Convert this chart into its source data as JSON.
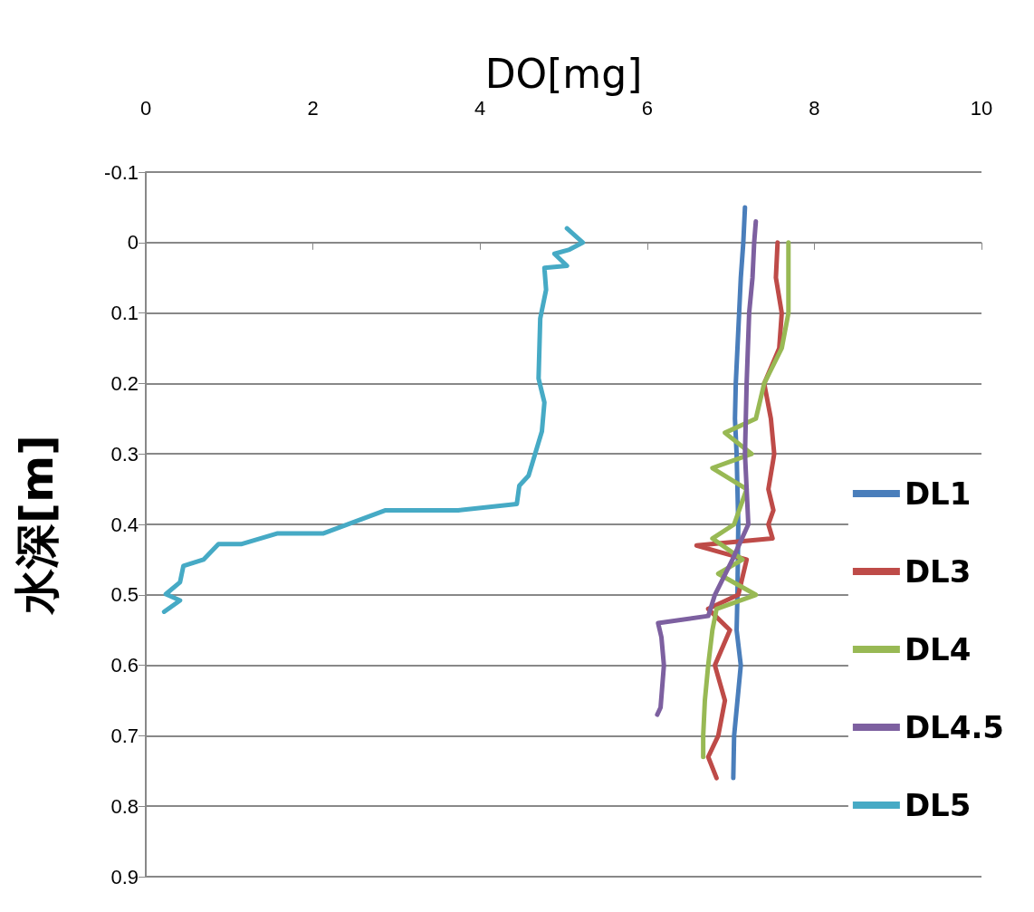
{
  "chart_data": {
    "type": "line",
    "xlabel": "DO[mg]",
    "ylabel": "水深[m]",
    "xlim": [
      0,
      10
    ],
    "xticks": [
      0,
      2,
      4,
      6,
      8,
      10
    ],
    "ylim": [
      0.9,
      -0.1
    ],
    "yticks": [
      -0.1,
      0,
      0.1,
      0.2,
      0.3,
      0.4,
      0.5,
      0.6,
      0.7,
      0.8,
      0.9
    ],
    "grid": "y",
    "legend": "right",
    "marker": "none",
    "line_style": "solid",
    "series": [
      {
        "name": "DL1",
        "color": "#4a7ebb",
        "x": [
          7.17,
          7.15,
          7.12,
          7.1,
          7.06,
          7.05,
          7.07,
          7.09,
          7.08,
          7.07,
          7.12,
          7.08,
          7.04,
          7.03
        ],
        "values": [
          -0.05,
          0,
          0.05,
          0.1,
          0.2,
          0.25,
          0.3,
          0.4,
          0.5,
          0.55,
          0.6,
          0.65,
          0.7,
          0.76
        ]
      },
      {
        "name": "DL3",
        "color": "#be4b48",
        "x": [
          7.56,
          7.54,
          7.61,
          7.58,
          7.4,
          7.48,
          7.52,
          7.45,
          7.51,
          7.45,
          7.5,
          6.59,
          7.19,
          7.09,
          6.73,
          6.99,
          6.81,
          6.93,
          6.85,
          6.73,
          6.83
        ],
        "values": [
          0,
          0.05,
          0.1,
          0.15,
          0.2,
          0.25,
          0.3,
          0.35,
          0.38,
          0.4,
          0.42,
          0.43,
          0.45,
          0.5,
          0.52,
          0.55,
          0.6,
          0.65,
          0.7,
          0.73,
          0.76
        ]
      },
      {
        "name": "DL4",
        "color": "#98b954",
        "x": [
          7.69,
          7.69,
          7.61,
          7.4,
          7.3,
          6.93,
          7.25,
          6.78,
          7.19,
          7.04,
          6.78,
          7.14,
          6.85,
          7.3,
          6.83,
          6.78,
          6.73,
          6.69,
          6.67,
          6.67
        ],
        "values": [
          0,
          0.1,
          0.15,
          0.2,
          0.25,
          0.27,
          0.3,
          0.32,
          0.35,
          0.4,
          0.42,
          0.45,
          0.47,
          0.5,
          0.52,
          0.55,
          0.6,
          0.65,
          0.7,
          0.73
        ]
      },
      {
        "name": "DL4.5",
        "color": "#7d60a0",
        "x": [
          7.3,
          7.28,
          7.26,
          7.22,
          7.19,
          7.17,
          7.21,
          7.02,
          6.81,
          6.73,
          6.13,
          6.17,
          6.2,
          6.16,
          6.12
        ],
        "values": [
          -0.03,
          0,
          0.05,
          0.1,
          0.2,
          0.3,
          0.4,
          0.45,
          0.5,
          0.53,
          0.54,
          0.56,
          0.6,
          0.66,
          0.67
        ]
      },
      {
        "name": "DL5",
        "color": "#46aac5",
        "x": [
          5.04,
          5.23,
          5.07,
          4.89,
          5.04,
          4.77,
          4.79,
          4.72,
          4.7,
          4.77,
          4.74,
          4.58,
          4.47,
          4.44,
          3.74,
          2.87,
          2.12,
          1.57,
          1.14,
          0.87,
          0.69,
          0.45,
          0.41,
          0.24,
          0.41,
          0.22
        ],
        "values": [
          -0.02,
          0,
          0.01,
          0.016,
          0.033,
          0.036,
          0.067,
          0.108,
          0.193,
          0.227,
          0.268,
          0.331,
          0.345,
          0.371,
          0.38,
          0.38,
          0.413,
          0.413,
          0.428,
          0.428,
          0.45,
          0.459,
          0.482,
          0.499,
          0.508,
          0.524
        ]
      }
    ]
  }
}
